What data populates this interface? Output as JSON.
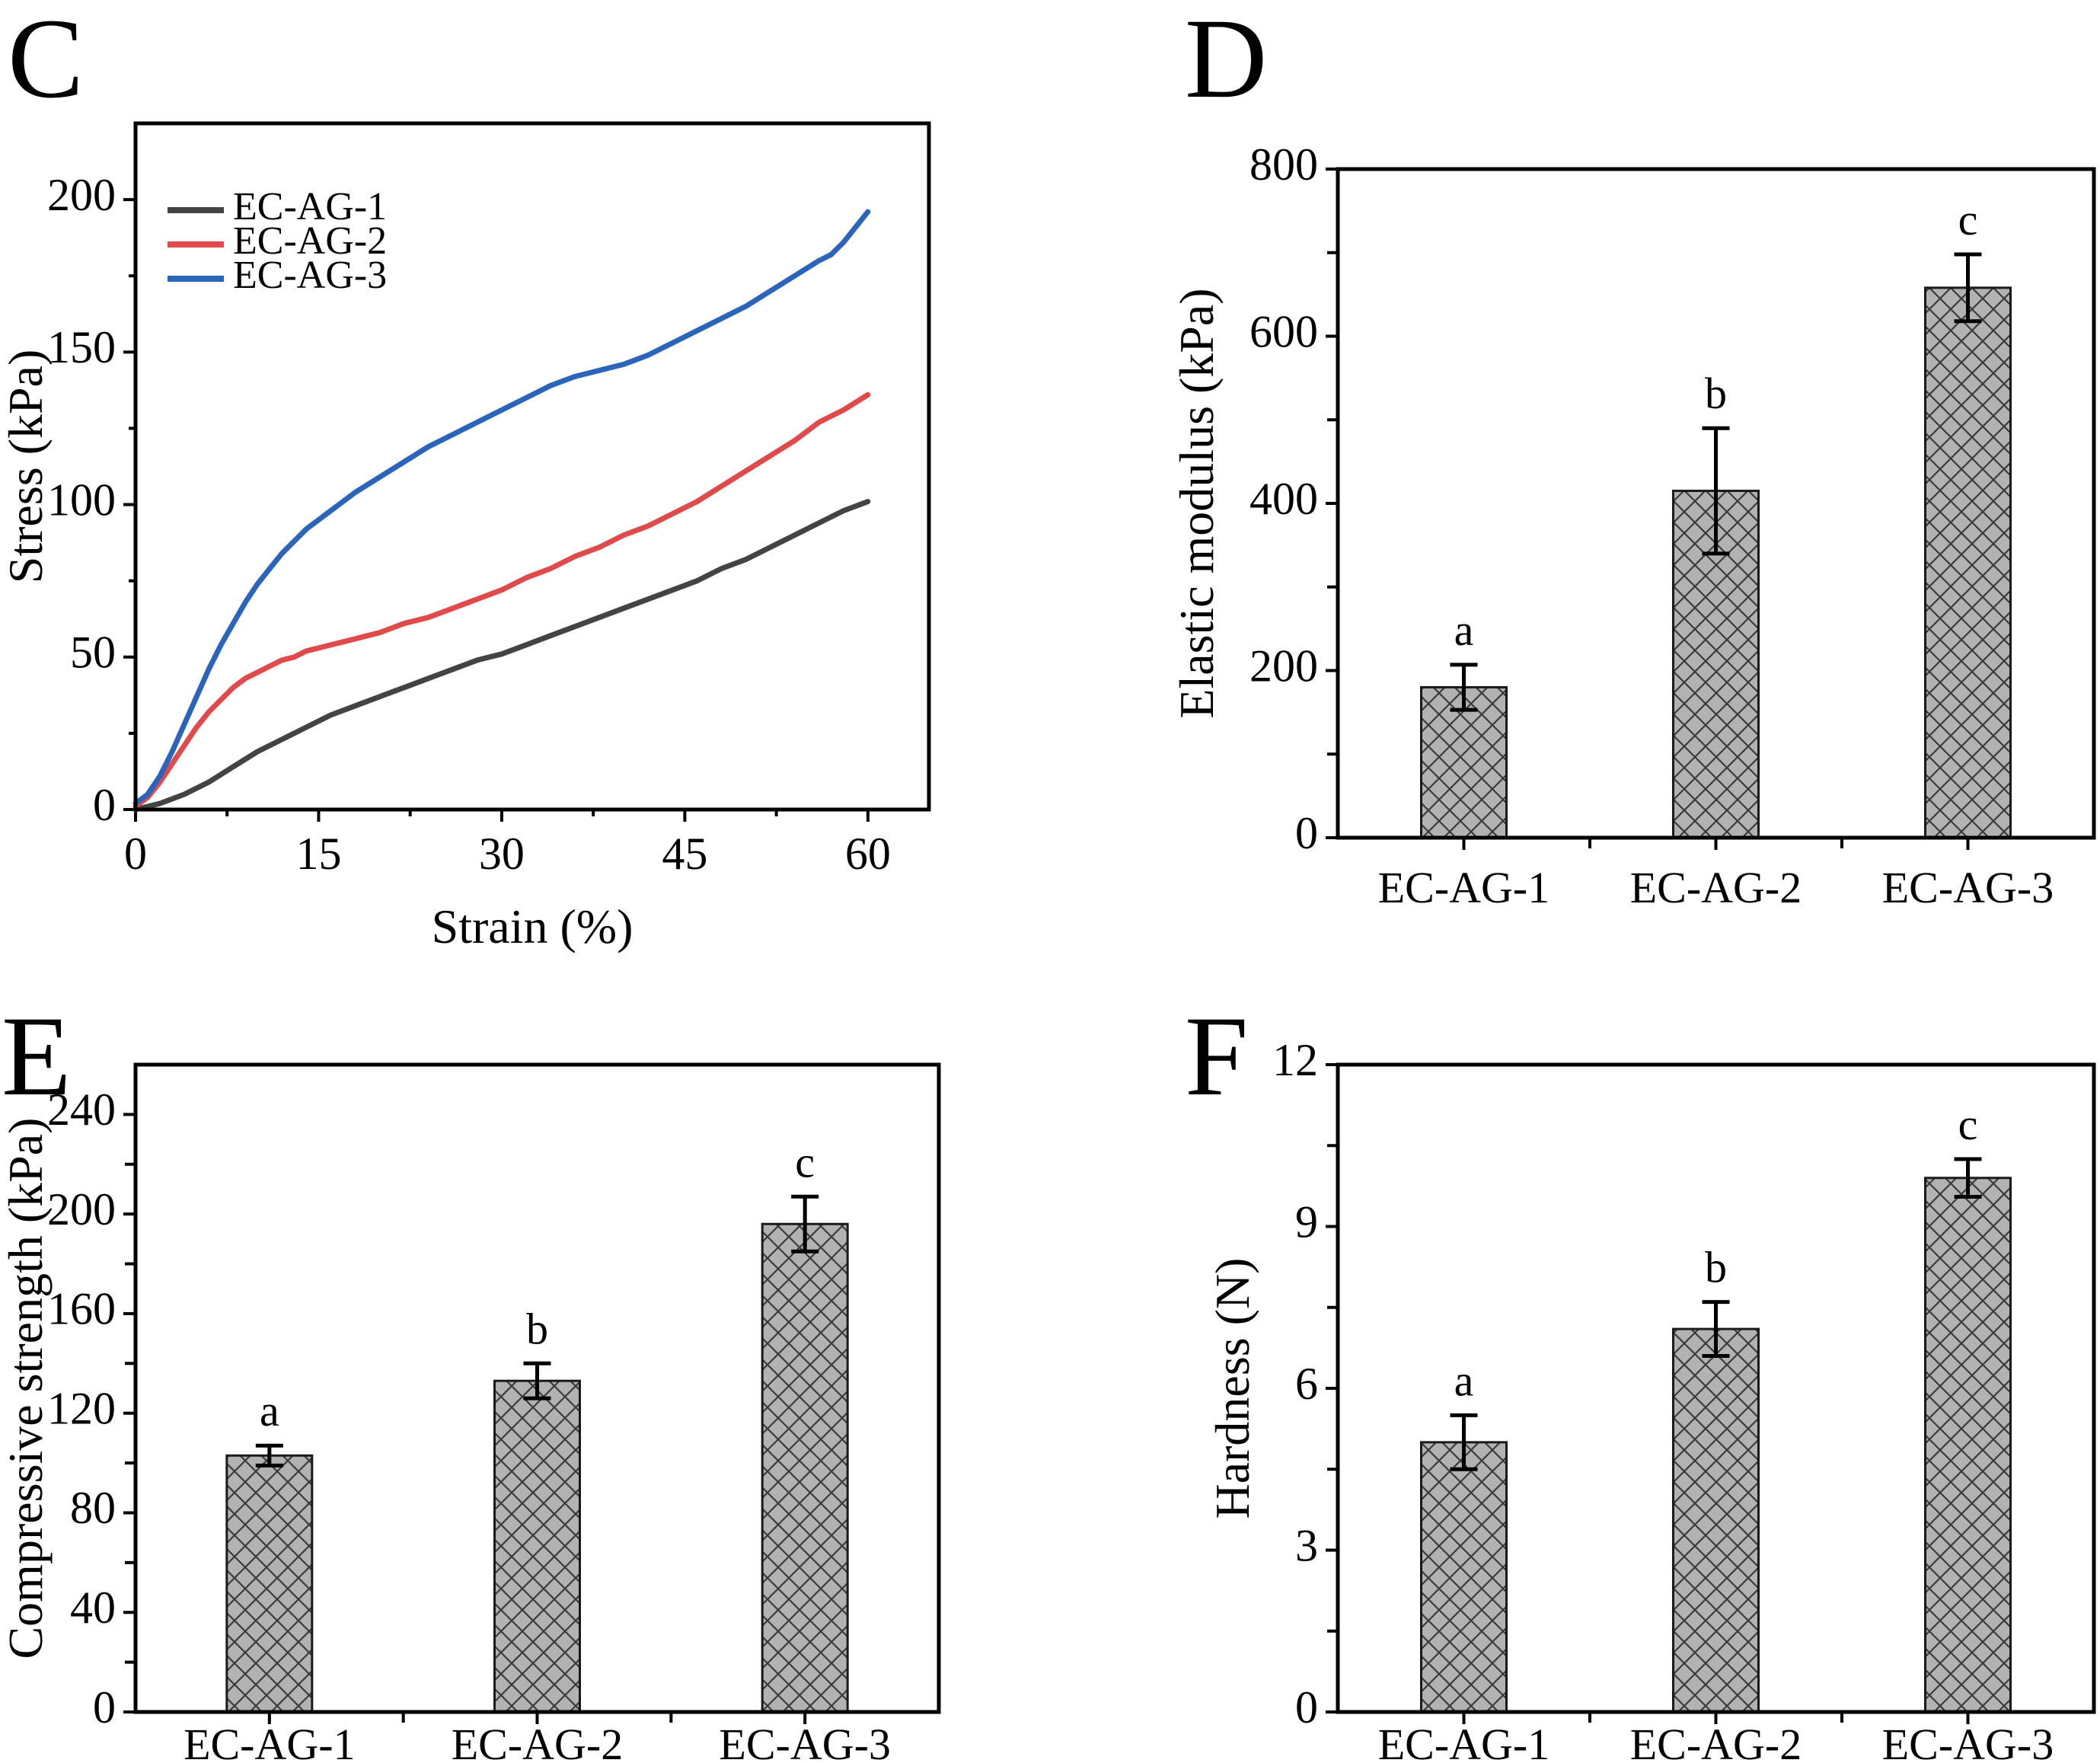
{
  "figure": {
    "background": "#ffffff",
    "panels": [
      {
        "letter": "C"
      },
      {
        "letter": "D"
      },
      {
        "letter": "E"
      },
      {
        "letter": "F"
      }
    ]
  },
  "chart_data": [
    {
      "type": "line",
      "panel": "C",
      "title": "",
      "xlabel": "Strain (%)",
      "ylabel": "Stress (kPa)",
      "xlim": [
        0,
        65
      ],
      "ylim": [
        0,
        225
      ],
      "xticks": [
        0,
        15,
        30,
        45,
        60
      ],
      "yticks": [
        0,
        50,
        100,
        150,
        200
      ],
      "x_minor_ticks": [
        7.5,
        22.5,
        37.5,
        52.5
      ],
      "y_minor_ticks": [
        25,
        75,
        125,
        175
      ],
      "grid": false,
      "legend_position": "top-left",
      "series": [
        {
          "name": "EC-AG-1",
          "color": "#434343",
          "x": [
            0,
            2,
            4,
            6,
            8,
            10,
            12,
            14,
            16,
            18,
            20,
            22,
            24,
            26,
            28,
            30,
            32,
            34,
            36,
            38,
            40,
            42,
            44,
            46,
            48,
            50,
            52,
            54,
            56,
            58,
            60
          ],
          "y": [
            0,
            2,
            5,
            9,
            14,
            19,
            23,
            27,
            31,
            34,
            37,
            40,
            43,
            46,
            49,
            51,
            54,
            57,
            60,
            63,
            66,
            69,
            72,
            75,
            79,
            82,
            86,
            90,
            94,
            98,
            101
          ]
        },
        {
          "name": "EC-AG-2",
          "color": "#e04a4a",
          "x": [
            0,
            1,
            2,
            3,
            4,
            5,
            6,
            7,
            8,
            9,
            10,
            11,
            12,
            13,
            14,
            15,
            16,
            18,
            20,
            22,
            24,
            26,
            28,
            30,
            32,
            34,
            36,
            38,
            40,
            42,
            44,
            46,
            48,
            50,
            52,
            54,
            56,
            58,
            60
          ],
          "y": [
            1,
            4,
            9,
            15,
            21,
            27,
            32,
            36,
            40,
            43,
            45,
            47,
            49,
            50,
            52,
            53,
            54,
            56,
            58,
            61,
            63,
            66,
            69,
            72,
            76,
            79,
            83,
            86,
            90,
            93,
            97,
            101,
            106,
            111,
            116,
            121,
            127,
            131,
            136
          ]
        },
        {
          "name": "EC-AG-3",
          "color": "#2a64bb",
          "x": [
            0,
            1,
            2,
            3,
            4,
            5,
            6,
            7,
            8,
            9,
            10,
            11,
            12,
            13,
            14,
            15,
            16,
            18,
            20,
            22,
            24,
            26,
            28,
            30,
            32,
            34,
            36,
            38,
            40,
            42,
            44,
            46,
            48,
            50,
            52,
            54,
            56,
            57,
            58,
            59,
            60
          ],
          "y": [
            2,
            5,
            11,
            19,
            28,
            37,
            46,
            54,
            61,
            68,
            74,
            79,
            84,
            88,
            92,
            95,
            98,
            104,
            109,
            114,
            119,
            123,
            127,
            131,
            135,
            139,
            142,
            144,
            146,
            149,
            153,
            157,
            161,
            165,
            170,
            175,
            180,
            182,
            186,
            191,
            196
          ]
        }
      ]
    },
    {
      "type": "bar",
      "panel": "D",
      "title": "",
      "xlabel": "",
      "ylabel": "Elastic modulus (kPa)",
      "categories": [
        "EC-AG-1",
        "EC-AG-2",
        "EC-AG-3"
      ],
      "values": [
        180,
        415,
        658
      ],
      "errors": [
        27,
        75,
        40
      ],
      "sig_letters": [
        "a",
        "b",
        "c"
      ],
      "ylim": [
        0,
        800
      ],
      "yticks": [
        0,
        200,
        400,
        600,
        800
      ],
      "y_minor_ticks": [
        100,
        300,
        500,
        700
      ],
      "grid": false,
      "bar_fill": "#b2b2b2",
      "bar_edge": "#1a1a1a",
      "hatch": "diagonal-crosshatch",
      "hatch_color": "#3b3b3b"
    },
    {
      "type": "bar",
      "panel": "E",
      "title": "",
      "xlabel": "",
      "ylabel": "Compressive strength (kPa)",
      "categories": [
        "EC-AG-1",
        "EC-AG-2",
        "EC-AG-3"
      ],
      "values": [
        103,
        133,
        196
      ],
      "errors": [
        4,
        7,
        11
      ],
      "sig_letters": [
        "a",
        "b",
        "c"
      ],
      "ylim": [
        0,
        260
      ],
      "yticks": [
        0,
        40,
        80,
        120,
        160,
        200,
        240
      ],
      "y_minor_ticks": [
        20,
        60,
        100,
        140,
        180,
        220
      ],
      "grid": false,
      "bar_fill": "#b2b2b2",
      "bar_edge": "#1a1a1a",
      "hatch": "diagonal-crosshatch",
      "hatch_color": "#3b3b3b"
    },
    {
      "type": "bar",
      "panel": "F",
      "title": "",
      "xlabel": "",
      "ylabel": "Hardness (N)",
      "categories": [
        "EC-AG-1",
        "EC-AG-2",
        "EC-AG-3"
      ],
      "values": [
        5.0,
        7.1,
        9.9
      ],
      "errors": [
        0.5,
        0.5,
        0.35
      ],
      "sig_letters": [
        "a",
        "b",
        "c"
      ],
      "ylim": [
        0,
        12
      ],
      "yticks": [
        0,
        3,
        6,
        9,
        12
      ],
      "y_minor_ticks": [
        1.5,
        4.5,
        7.5,
        10.5
      ],
      "grid": false,
      "bar_fill": "#b2b2b2",
      "bar_edge": "#1a1a1a",
      "hatch": "diagonal-crosshatch",
      "hatch_color": "#3b3b3b"
    }
  ]
}
